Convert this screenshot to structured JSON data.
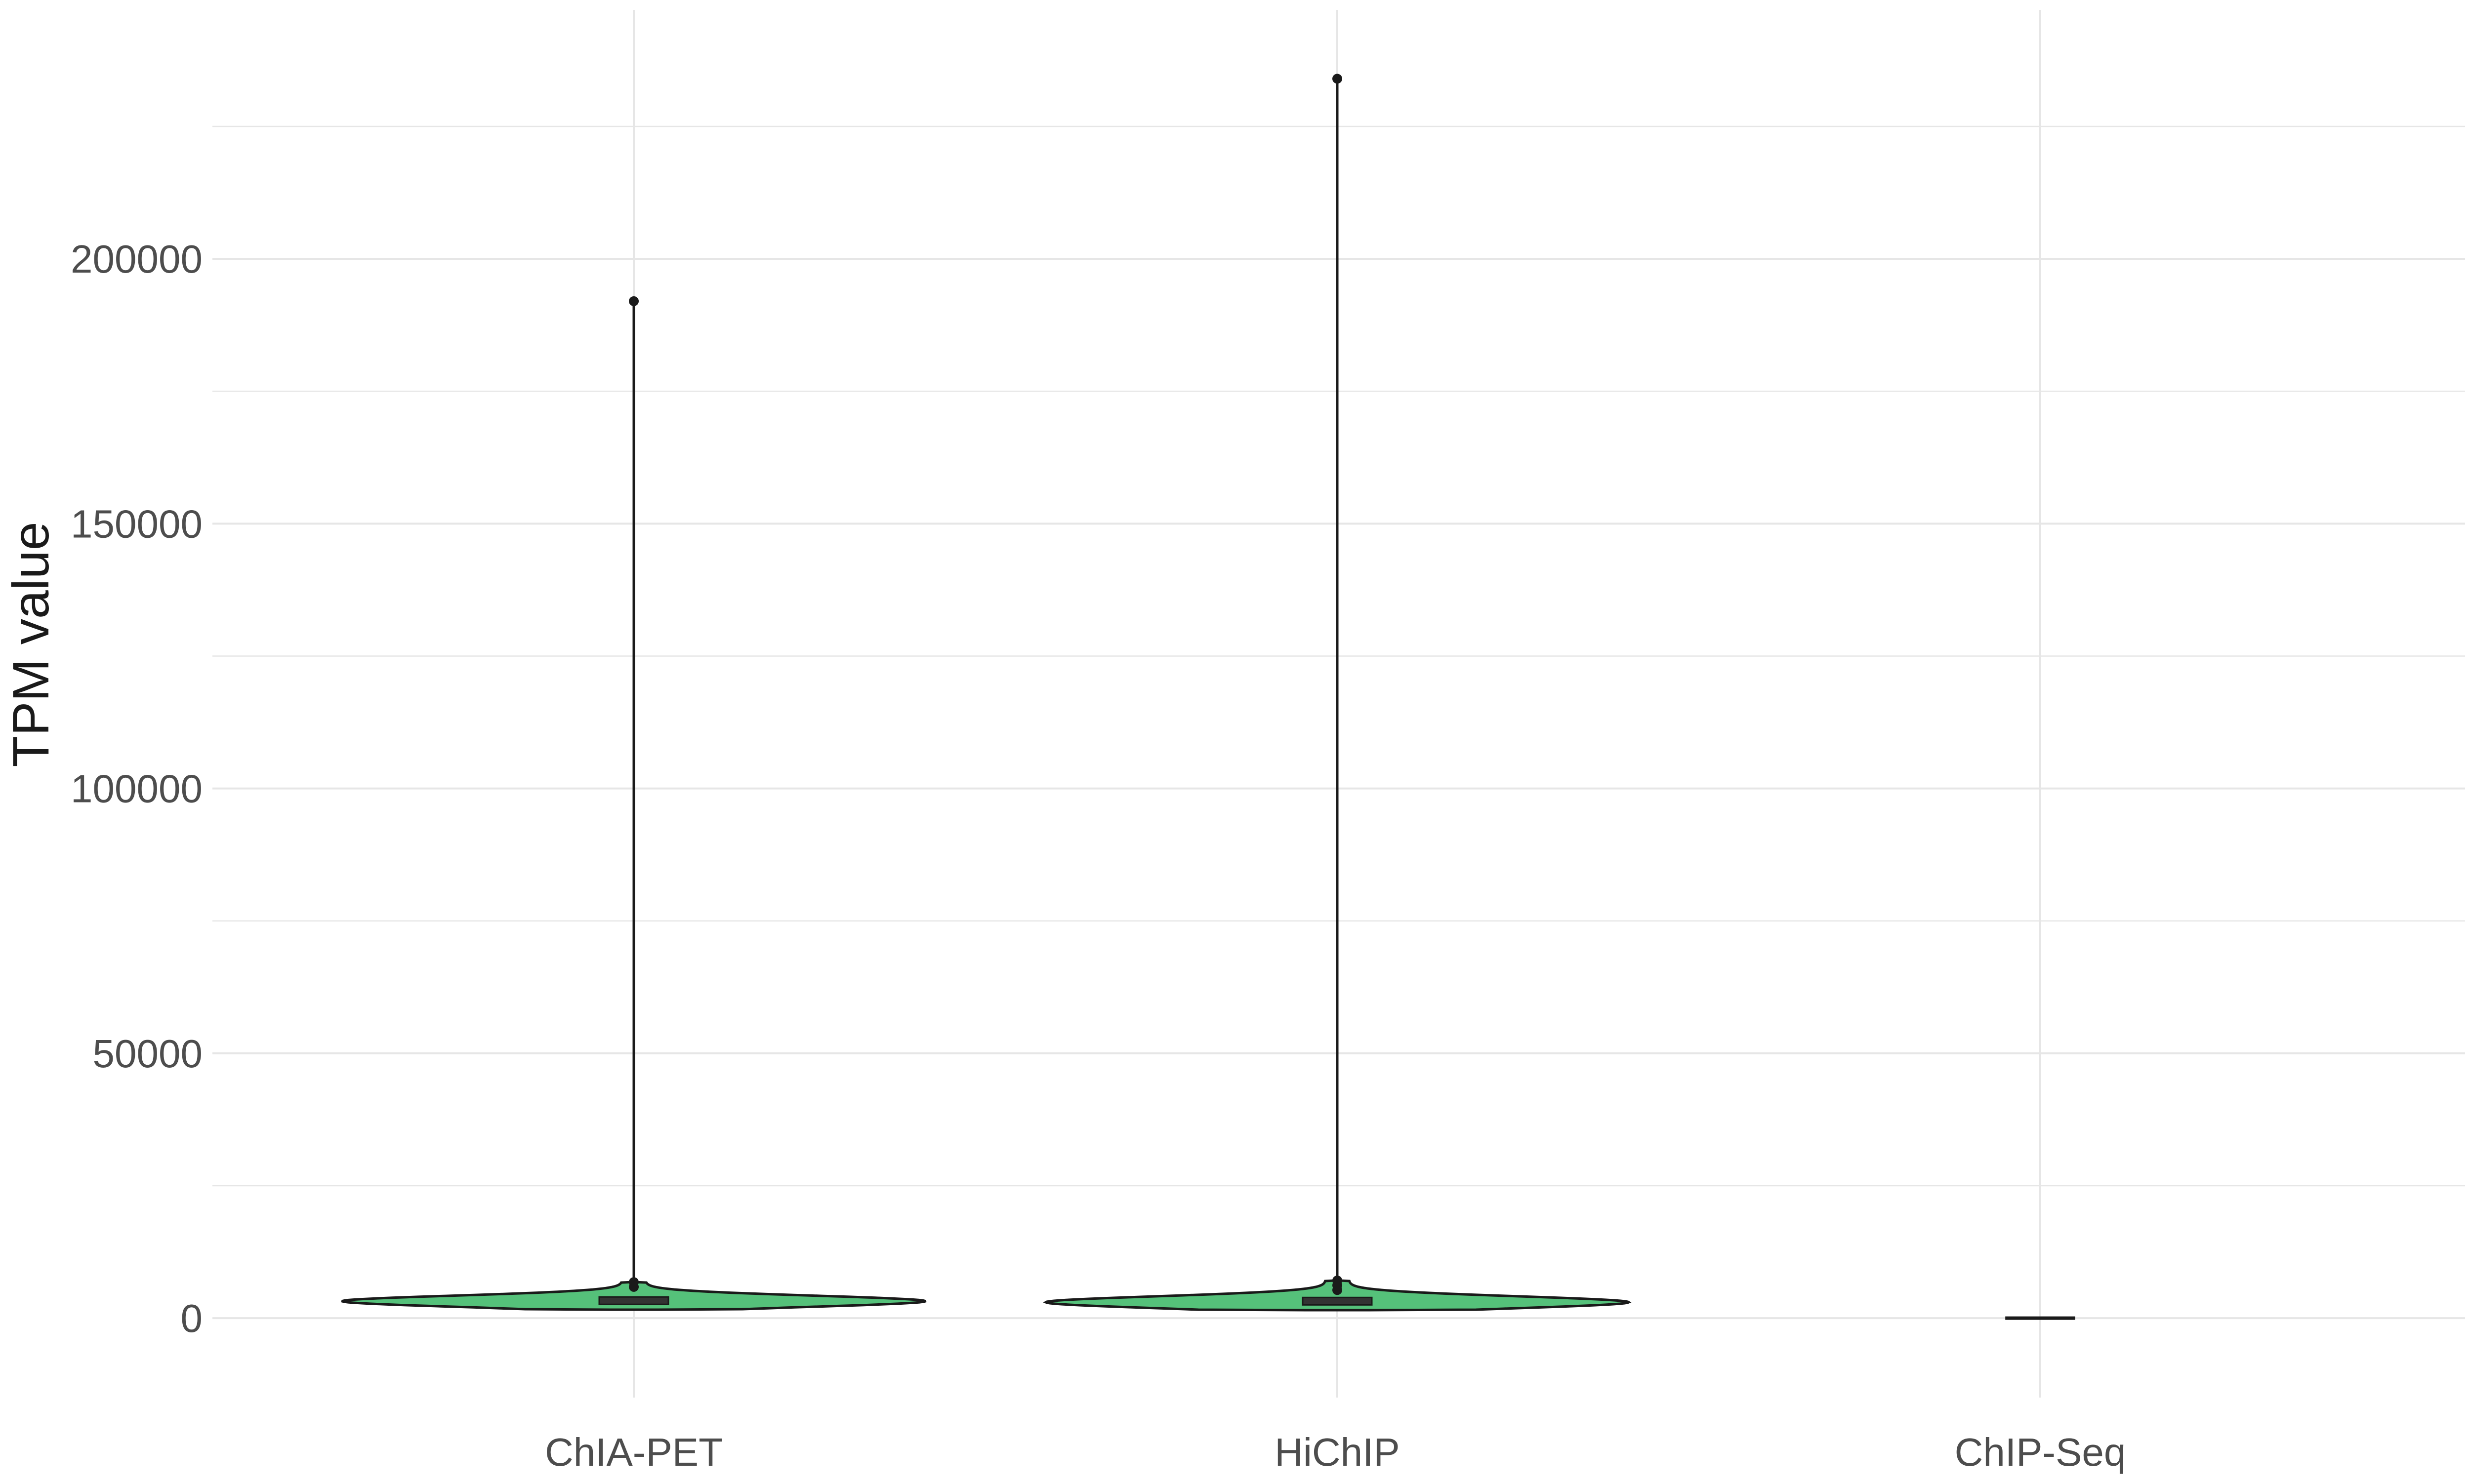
{
  "chart_data": {
    "type": "violin",
    "categories": [
      "ChIA-PET",
      "HiChIP",
      "ChIP-Seq"
    ],
    "xlabel": "",
    "ylabel": "TPM value",
    "ylim": [
      -15000,
      247000
    ],
    "yticks": [
      0,
      50000,
      100000,
      150000,
      200000
    ],
    "ytick_labels": [
      "0",
      "50000",
      "100000",
      "150000",
      "200000"
    ],
    "grid": true,
    "legend": "none",
    "fill_color": "#55c17a",
    "outline_color": "#1a1a1a",
    "grid_color": "#e6e6e6",
    "series": [
      {
        "category": "ChIA-PET",
        "median": 3200,
        "q1": 2600,
        "q3": 4000,
        "min": 1600,
        "max": 192000,
        "mode": 3200,
        "outliers": [
          192000,
          6800,
          5900
        ],
        "violin_width": 1.0,
        "violin_range": [
          1600,
          6800
        ]
      },
      {
        "category": "HiChIP",
        "median": 3000,
        "q1": 2500,
        "q3": 3900,
        "min": 1500,
        "max": 234000,
        "mode": 3000,
        "outliers": [
          234000,
          7100,
          6200,
          5300
        ],
        "violin_width": 1.0,
        "violin_range": [
          1500,
          7100
        ]
      },
      {
        "category": "ChIP-Seq",
        "median": 0,
        "q1": 0,
        "q3": 0,
        "min": 0,
        "max": 0,
        "mode": 0,
        "outliers": [],
        "violin_width": 0.12,
        "violin_range": [
          0,
          0
        ]
      }
    ]
  }
}
